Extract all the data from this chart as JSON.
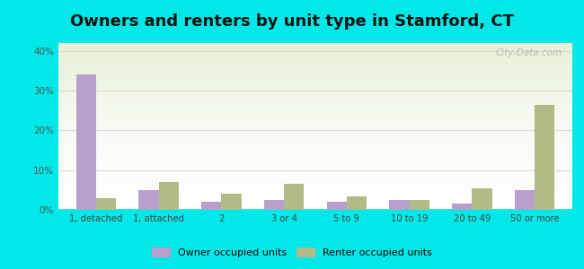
{
  "title": "Owners and renters by unit type in Stamford, CT",
  "categories": [
    "1, detached",
    "1, attached",
    "2",
    "3 or 4",
    "5 to 9",
    "10 to 19",
    "20 to 49",
    "50 or more"
  ],
  "owner_values": [
    34.0,
    5.0,
    2.0,
    2.5,
    2.0,
    2.5,
    1.5,
    5.0
  ],
  "renter_values": [
    3.0,
    7.0,
    4.0,
    6.5,
    3.5,
    2.5,
    5.5,
    26.5
  ],
  "owner_color": "#b8a0cc",
  "renter_color": "#b0bb88",
  "background_color": "#00e8e8",
  "ylim": [
    0,
    42
  ],
  "yticks": [
    0,
    10,
    20,
    30,
    40
  ],
  "legend_owner": "Owner occupied units",
  "legend_renter": "Renter occupied units",
  "title_fontsize": 13,
  "bar_width": 0.32,
  "watermark": "City-Data.com"
}
